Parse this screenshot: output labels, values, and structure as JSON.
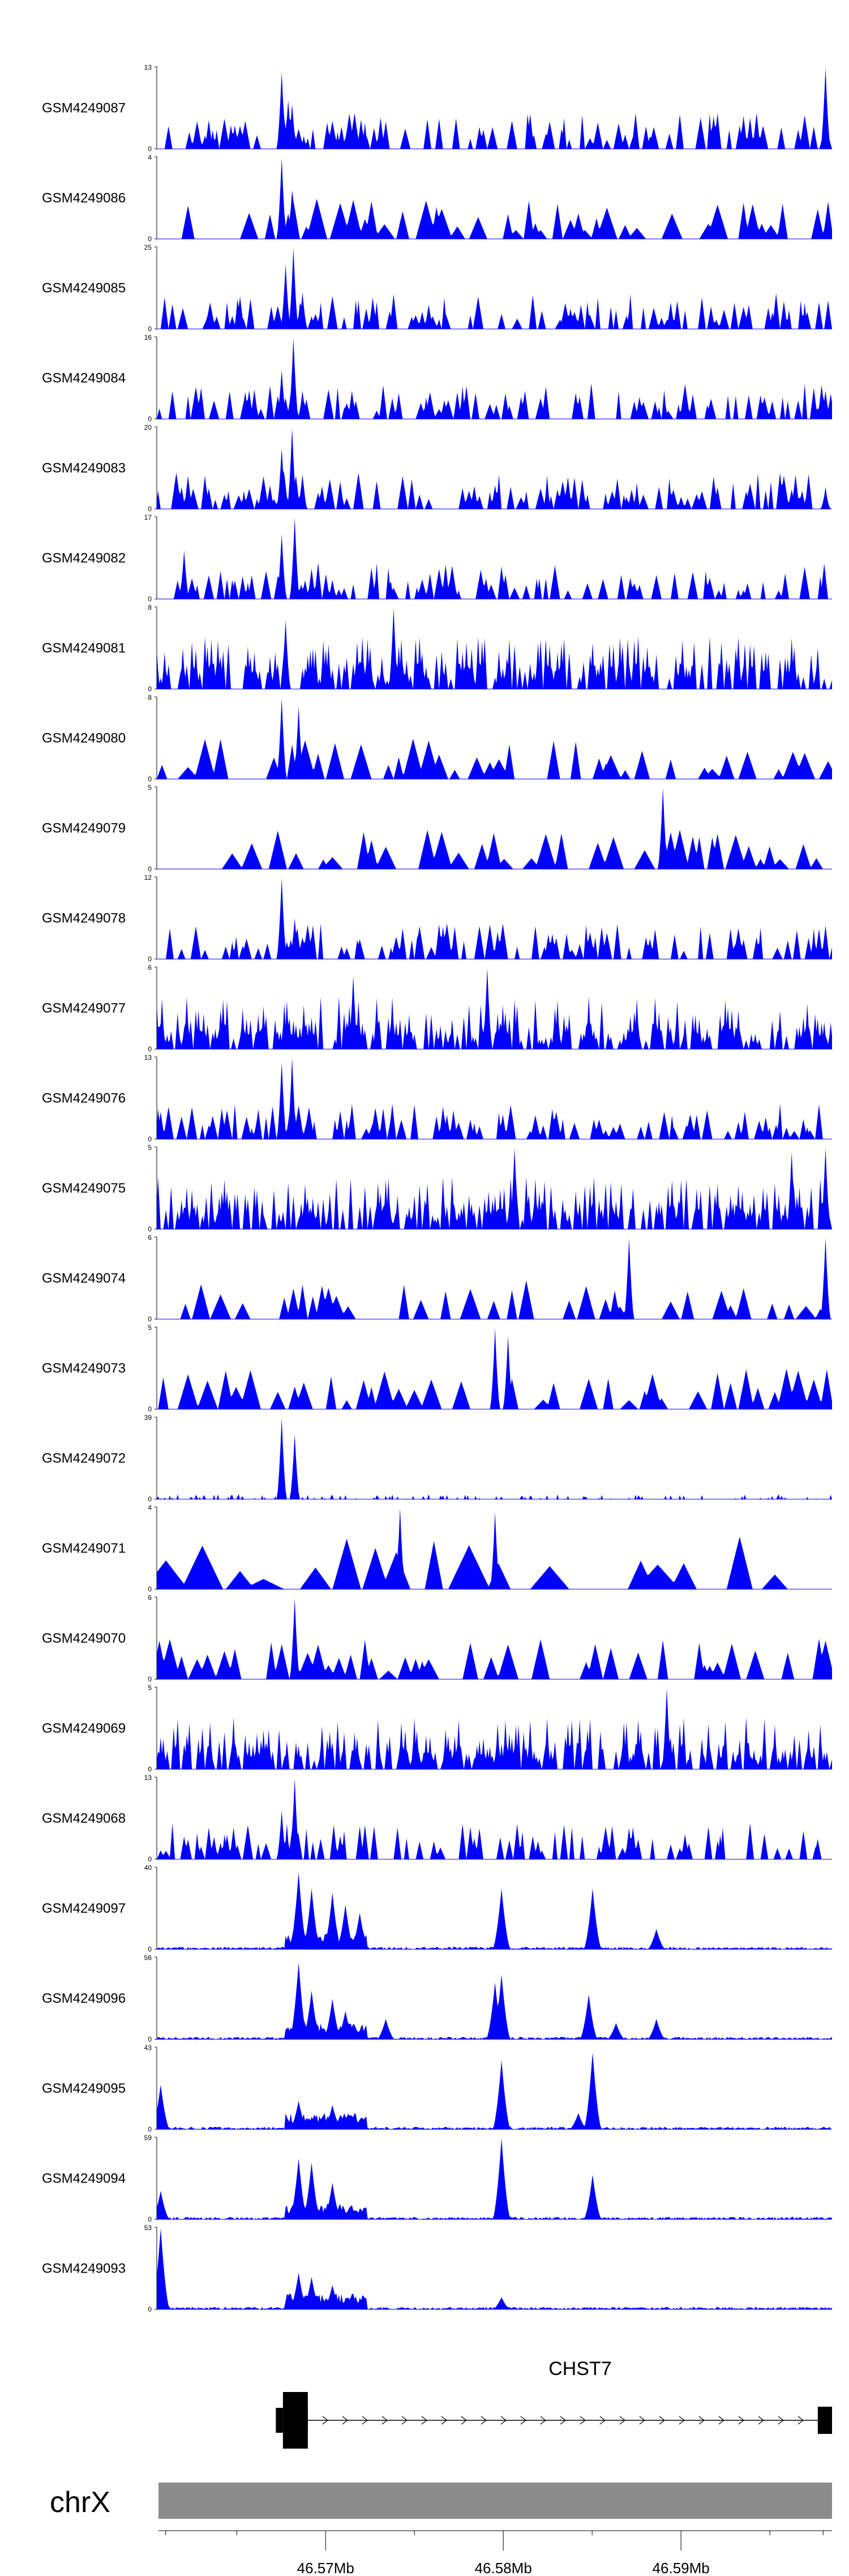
{
  "chart_data": {
    "type": "area",
    "title": "",
    "region": {
      "chrom": "chrX",
      "start_mb": 46.5605,
      "end_mb": 46.5985
    },
    "colors": {
      "signal": "#0000ff",
      "chromosome": "#8c8c8c",
      "gene": "#000000"
    },
    "tracks": [
      {
        "name": "GSM4249087",
        "ylim": [
          0,
          13
        ],
        "ymax_label": "13",
        "ymin_label": "0",
        "style": "sparse",
        "peaks": [
          [
            0.185,
            0.95
          ],
          [
            0.195,
            0.6
          ],
          [
            0.2,
            0.55
          ],
          [
            0.99,
            1.0
          ]
        ]
      },
      {
        "name": "GSM4249086",
        "ylim": [
          0,
          4
        ],
        "ymax_label": "4",
        "ymin_label": "0",
        "style": "triangles",
        "peaks": [
          [
            0.185,
            1.0
          ],
          [
            0.2,
            0.6
          ]
        ]
      },
      {
        "name": "GSM4249085",
        "ylim": [
          0,
          25
        ],
        "ymax_label": "25",
        "ymin_label": "0",
        "style": "sparse",
        "peaks": [
          [
            0.19,
            0.8
          ],
          [
            0.203,
            1.0
          ],
          [
            0.215,
            0.45
          ]
        ]
      },
      {
        "name": "GSM4249084",
        "ylim": [
          0,
          16
        ],
        "ymax_label": "16",
        "ymin_label": "0",
        "style": "sparse",
        "peaks": [
          [
            0.185,
            0.6
          ],
          [
            0.203,
            1.0
          ],
          [
            0.215,
            0.35
          ],
          [
            0.99,
            0.35
          ]
        ]
      },
      {
        "name": "GSM4249083",
        "ylim": [
          0,
          20
        ],
        "ymax_label": "20",
        "ymin_label": "0",
        "style": "sparse",
        "peaks": [
          [
            0.185,
            0.75
          ],
          [
            0.2,
            1.0
          ],
          [
            0.215,
            0.3
          ],
          [
            0.99,
            0.25
          ]
        ]
      },
      {
        "name": "GSM4249082",
        "ylim": [
          0,
          17
        ],
        "ymax_label": "17",
        "ymin_label": "0",
        "style": "sparse",
        "peaks": [
          [
            0.04,
            0.6
          ],
          [
            0.185,
            0.8
          ],
          [
            0.205,
            1.0
          ]
        ]
      },
      {
        "name": "GSM4249081",
        "ylim": [
          0,
          8
        ],
        "ymax_label": "8",
        "ymin_label": "0",
        "style": "dense",
        "peaks": [
          [
            0.19,
            0.85
          ],
          [
            0.35,
            1.0
          ]
        ]
      },
      {
        "name": "GSM4249080",
        "ylim": [
          0,
          8
        ],
        "ymax_label": "8",
        "ymin_label": "0",
        "style": "triangles",
        "peaks": [
          [
            0.185,
            1.0
          ],
          [
            0.21,
            0.9
          ]
        ]
      },
      {
        "name": "GSM4249079",
        "ylim": [
          0,
          5
        ],
        "ymax_label": "5",
        "ymin_label": "0",
        "style": "triangles",
        "peaks": [
          [
            0.75,
            1.0
          ]
        ]
      },
      {
        "name": "GSM4249078",
        "ylim": [
          0,
          12
        ],
        "ymax_label": "12",
        "ymin_label": "0",
        "style": "sparse",
        "peaks": [
          [
            0.185,
            1.0
          ],
          [
            0.205,
            0.5
          ]
        ]
      },
      {
        "name": "GSM4249077",
        "ylim": [
          0,
          6
        ],
        "ymax_label": "6",
        "ymin_label": "0",
        "style": "dense",
        "peaks": [
          [
            0.29,
            0.9
          ],
          [
            0.49,
            1.0
          ]
        ]
      },
      {
        "name": "GSM4249076",
        "ylim": [
          0,
          13
        ],
        "ymax_label": "13",
        "ymin_label": "0",
        "style": "sparse",
        "peaks": [
          [
            0.185,
            0.95
          ],
          [
            0.2,
            1.0
          ],
          [
            0.43,
            0.3
          ]
        ]
      },
      {
        "name": "GSM4249075",
        "ylim": [
          0,
          5
        ],
        "ymax_label": "5",
        "ymin_label": "0",
        "style": "dense",
        "peaks": [
          [
            0.53,
            1.0
          ],
          [
            0.94,
            0.95
          ],
          [
            0.99,
            1.0
          ]
        ]
      },
      {
        "name": "GSM4249074",
        "ylim": [
          0,
          6
        ],
        "ymax_label": "6",
        "ymin_label": "0",
        "style": "triangles",
        "peaks": [
          [
            0.7,
            1.0
          ],
          [
            0.99,
            1.0
          ]
        ]
      },
      {
        "name": "GSM4249073",
        "ylim": [
          0,
          5
        ],
        "ymax_label": "5",
        "ymin_label": "0",
        "style": "triangles",
        "peaks": [
          [
            0.5,
            1.0
          ],
          [
            0.52,
            0.9
          ]
        ]
      },
      {
        "name": "GSM4249072",
        "ylim": [
          0,
          39
        ],
        "ymax_label": "39",
        "ymin_label": "0",
        "style": "flat",
        "peaks": [
          [
            0.185,
            1.0
          ],
          [
            0.205,
            0.8
          ]
        ]
      },
      {
        "name": "GSM4249071",
        "ylim": [
          0,
          4
        ],
        "ymax_label": "4",
        "ymin_label": "0",
        "style": "bigtriangles",
        "peaks": [
          [
            0.36,
            1.0
          ],
          [
            0.5,
            0.95
          ]
        ]
      },
      {
        "name": "GSM4249070",
        "ylim": [
          0,
          6
        ],
        "ymax_label": "6",
        "ymin_label": "0",
        "style": "triangles",
        "peaks": [
          [
            0.205,
            1.0
          ]
        ]
      },
      {
        "name": "GSM4249069",
        "ylim": [
          0,
          5
        ],
        "ymax_label": "5",
        "ymin_label": "0",
        "style": "dense",
        "peaks": [
          [
            0.755,
            1.0
          ]
        ]
      },
      {
        "name": "GSM4249068",
        "ylim": [
          0,
          13
        ],
        "ymax_label": "13",
        "ymin_label": "0",
        "style": "sparse",
        "peaks": [
          [
            0.185,
            0.6
          ],
          [
            0.205,
            1.0
          ]
        ]
      },
      {
        "name": "GSM4249097",
        "ylim": [
          0,
          40
        ],
        "ymax_label": "40",
        "ymin_label": "0",
        "style": "atac",
        "peaks": [
          [
            0.21,
            0.95
          ],
          [
            0.23,
            0.75
          ],
          [
            0.26,
            0.7
          ],
          [
            0.28,
            0.55
          ],
          [
            0.3,
            0.45
          ],
          [
            0.51,
            0.75
          ],
          [
            0.645,
            0.75
          ],
          [
            0.74,
            0.25
          ]
        ]
      },
      {
        "name": "GSM4249096",
        "ylim": [
          0,
          56
        ],
        "ymax_label": "56",
        "ymin_label": "0",
        "style": "atac",
        "peaks": [
          [
            0.21,
            0.95
          ],
          [
            0.23,
            0.6
          ],
          [
            0.26,
            0.5
          ],
          [
            0.28,
            0.35
          ],
          [
            0.34,
            0.25
          ],
          [
            0.5,
            0.7
          ],
          [
            0.51,
            0.8
          ],
          [
            0.64,
            0.55
          ],
          [
            0.68,
            0.2
          ],
          [
            0.74,
            0.25
          ]
        ]
      },
      {
        "name": "GSM4249095",
        "ylim": [
          0,
          43
        ],
        "ymax_label": "43",
        "ymin_label": "0",
        "style": "atac",
        "peaks": [
          [
            0.005,
            0.55
          ],
          [
            0.21,
            0.35
          ],
          [
            0.26,
            0.3
          ],
          [
            0.51,
            0.85
          ],
          [
            0.625,
            0.2
          ],
          [
            0.645,
            0.95
          ]
        ]
      },
      {
        "name": "GSM4249094",
        "ylim": [
          0,
          59
        ],
        "ymax_label": "59",
        "ymin_label": "0",
        "style": "atac",
        "peaks": [
          [
            0.005,
            0.35
          ],
          [
            0.21,
            0.75
          ],
          [
            0.23,
            0.7
          ],
          [
            0.26,
            0.45
          ],
          [
            0.51,
            1.0
          ],
          [
            0.645,
            0.55
          ]
        ]
      },
      {
        "name": "GSM4249093",
        "ylim": [
          0,
          53
        ],
        "ymax_label": "53",
        "ymin_label": "0",
        "style": "atac",
        "peaks": [
          [
            0.005,
            1.0
          ],
          [
            0.21,
            0.45
          ],
          [
            0.23,
            0.4
          ],
          [
            0.26,
            0.3
          ],
          [
            0.51,
            0.15
          ]
        ]
      }
    ],
    "gene": {
      "name": "CHST7",
      "strand": "+",
      "start_mb": 46.5676,
      "end_mb": 46.5985,
      "exons_mb": [
        [
          46.5672,
          46.5676
        ],
        [
          46.5676,
          46.569
        ],
        [
          46.5977,
          46.5985
        ]
      ]
    },
    "chromosome": {
      "name": "chrX"
    },
    "xaxis": {
      "ticks_mb": [
        46.57,
        46.58,
        46.59
      ],
      "tick_labels": [
        "46.57Mb",
        "46.58Mb",
        "46.59Mb"
      ]
    }
  }
}
